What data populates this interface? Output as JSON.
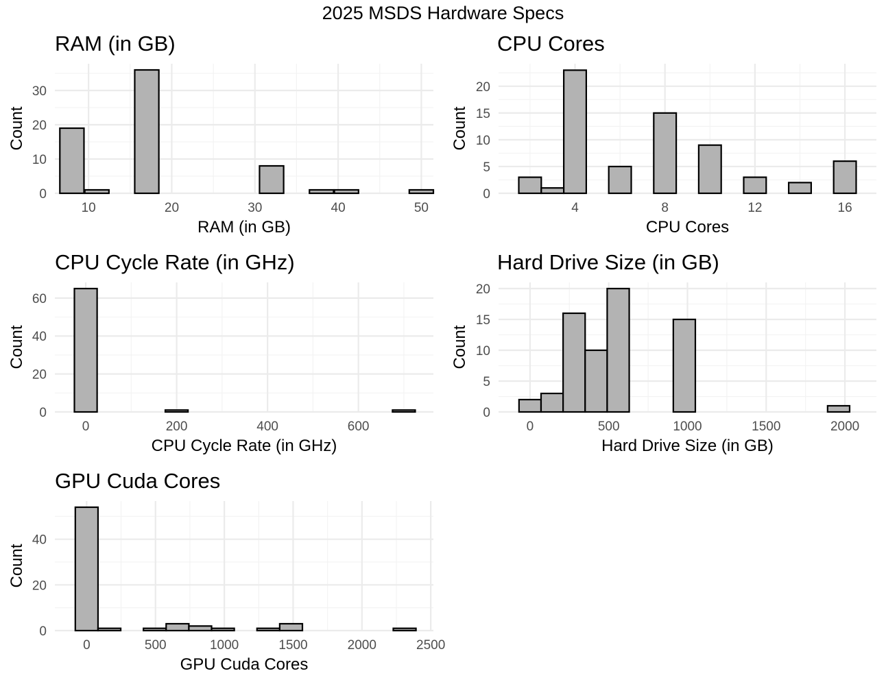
{
  "page_title": "2025 MSDS Hardware Specs",
  "colors": {
    "bar_fill": "#b3b3b3",
    "bar_outline": "#000000",
    "grid": "#ebebeb",
    "tick_text": "#4d4d4d"
  },
  "chart_data": [
    {
      "type": "bar",
      "title": "RAM (in GB)",
      "xlabel": "RAM (in GB)",
      "ylabel": "Count",
      "grid": true,
      "xlim": [
        5.95,
        51.45
      ],
      "ylim": [
        0,
        37.8
      ],
      "x_ticks": [
        10,
        20,
        30,
        40,
        50
      ],
      "y_ticks": [
        0,
        10,
        20,
        30
      ],
      "bins": [
        [
          8,
          19
        ],
        [
          11,
          1
        ],
        [
          14,
          0
        ],
        [
          17,
          36
        ],
        [
          20,
          0
        ],
        [
          23,
          0
        ],
        [
          26,
          0
        ],
        [
          29,
          0
        ],
        [
          32,
          8
        ],
        [
          35,
          0
        ],
        [
          38,
          1
        ],
        [
          41,
          1
        ],
        [
          44,
          0
        ],
        [
          47,
          0
        ],
        [
          50,
          1
        ]
      ],
      "bin_width": 2.9
    },
    {
      "type": "bar",
      "title": "CPU Cores",
      "xlabel": "CPU Cores",
      "ylabel": "Count",
      "grid": true,
      "xlim": [
        0.6,
        17.4
      ],
      "ylim": [
        0,
        24.2
      ],
      "x_ticks": [
        4,
        8,
        12,
        16
      ],
      "y_ticks": [
        0,
        5,
        10,
        15,
        20
      ],
      "bins": [
        [
          2,
          3
        ],
        [
          3,
          1
        ],
        [
          4,
          23
        ],
        [
          5,
          0
        ],
        [
          6,
          5
        ],
        [
          7,
          0
        ],
        [
          8,
          15
        ],
        [
          9,
          0
        ],
        [
          10,
          9
        ],
        [
          11,
          0
        ],
        [
          12,
          3
        ],
        [
          13,
          0
        ],
        [
          14,
          2
        ],
        [
          15,
          0
        ],
        [
          16,
          6
        ]
      ],
      "bin_width": 1
    },
    {
      "type": "bar",
      "title": "CPU Cycle Rate (in GHz)",
      "xlabel": "CPU Cycle Rate (in GHz)",
      "ylabel": "Count",
      "grid": true,
      "xlim": [
        -68,
        765
      ],
      "ylim": [
        0,
        68.25
      ],
      "x_ticks": [
        0,
        200,
        400,
        600
      ],
      "y_ticks": [
        0,
        20,
        40,
        60
      ],
      "bins": [
        [
          0,
          65
        ],
        [
          50,
          0
        ],
        [
          100,
          0
        ],
        [
          150,
          0
        ],
        [
          200,
          1
        ],
        [
          250,
          0
        ],
        [
          300,
          0
        ],
        [
          350,
          0
        ],
        [
          400,
          0
        ],
        [
          450,
          0
        ],
        [
          500,
          0
        ],
        [
          550,
          0
        ],
        [
          600,
          0
        ],
        [
          650,
          0
        ],
        [
          700,
          1
        ]
      ],
      "bin_width": 50
    },
    {
      "type": "bar",
      "title": "Hard Drive Size (in GB)",
      "xlabel": "Hard Drive Size (in GB)",
      "ylabel": "Count",
      "grid": true,
      "xlim": [
        -200,
        2200
      ],
      "ylim": [
        0,
        21
      ],
      "x_ticks": [
        0,
        500,
        1000,
        1500,
        2000
      ],
      "y_ticks": [
        0,
        5,
        10,
        15,
        20
      ],
      "bins": [
        [
          0,
          2
        ],
        [
          140,
          3
        ],
        [
          280,
          16
        ],
        [
          420,
          10
        ],
        [
          560,
          20
        ],
        [
          700,
          0
        ],
        [
          840,
          0
        ],
        [
          980,
          15
        ],
        [
          1120,
          0
        ],
        [
          1260,
          0
        ],
        [
          1400,
          0
        ],
        [
          1540,
          0
        ],
        [
          1680,
          0
        ],
        [
          1820,
          0
        ],
        [
          1960,
          1
        ]
      ],
      "bin_width": 140
    },
    {
      "type": "bar",
      "title": "GPU Cuda Cores",
      "xlabel": "GPU Cuda Cores",
      "ylabel": "Count",
      "grid": true,
      "xlim": [
        -231,
        2519
      ],
      "ylim": [
        0,
        56.7
      ],
      "x_ticks": [
        0,
        500,
        1000,
        1500,
        2000,
        2500
      ],
      "y_ticks": [
        0,
        20,
        40
      ],
      "bins": [
        [
          0,
          54
        ],
        [
          165,
          1
        ],
        [
          330,
          0
        ],
        [
          495,
          1
        ],
        [
          660,
          3
        ],
        [
          825,
          2
        ],
        [
          990,
          1
        ],
        [
          1155,
          0
        ],
        [
          1320,
          1
        ],
        [
          1485,
          3
        ],
        [
          1650,
          0
        ],
        [
          1815,
          0
        ],
        [
          1980,
          0
        ],
        [
          2145,
          0
        ],
        [
          2310,
          1
        ]
      ],
      "bin_width": 165
    }
  ]
}
